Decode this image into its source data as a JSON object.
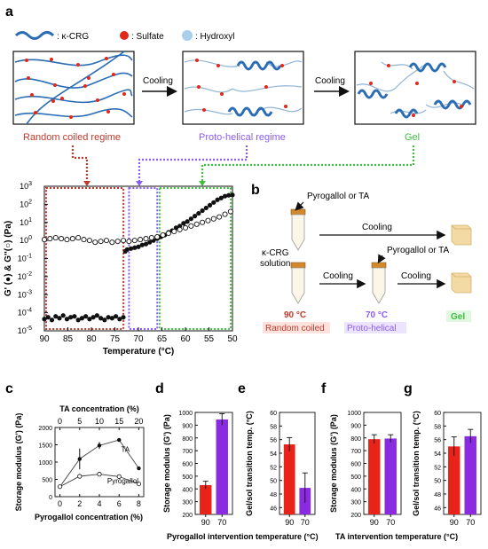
{
  "panel_letters": {
    "a": "a",
    "b": "b",
    "c": "c",
    "d": "d",
    "e": "e",
    "f": "f",
    "g": "g"
  },
  "legend_a": {
    "kcrg": ": κ-CRG",
    "sulfate": ": Sulfate",
    "hydroxyl": ": Hydroxyl"
  },
  "panel_a": {
    "cooling_1": "Cooling",
    "cooling_2": "Cooling",
    "regime_random": "Random coiled regime",
    "regime_proto": "Proto-helical regime",
    "regime_gel": "Gel"
  },
  "colors": {
    "red": "#c0392b",
    "purple": "#8a5cf6",
    "green": "#3fbf3f",
    "bar_red": "#e8241a",
    "bar_purple": "#8a2be2",
    "helix": "#2a6db5"
  },
  "panel_b": {
    "pyrogallol_or_ta_1": "Pyrogallol or TA",
    "pyrogallol_or_ta_2": "Pyrogallol or TA",
    "cooling_top": "Cooling",
    "cooling_mid": "Cooling",
    "cooling_right": "Cooling",
    "solution_line1": "κ-CRG",
    "solution_line2": "solution",
    "temp_90": "90 °C",
    "temp_70": "70 °C",
    "random_coiled": "Random coiled",
    "proto_helical": "Proto-helical",
    "gel": "Gel"
  },
  "chart_data": [
    {
      "id": "rheology",
      "type": "scatter",
      "xlabel": "Temperature (°C)",
      "ylabel": "G' (●) & G''(○) (Pa)",
      "xlim": [
        90,
        50
      ],
      "xticks": [
        90,
        85,
        80,
        75,
        70,
        65,
        60,
        55,
        50
      ],
      "ylim_log10": [
        -5,
        3
      ],
      "yticks": [
        "10^-5",
        "10^-4",
        "10^-3",
        "10^-2",
        "10^-1",
        "10^0",
        "10^1",
        "10^2",
        "10^3"
      ],
      "series": [
        {
          "marker": "filled",
          "x": [
            90,
            89.2,
            88.4,
            87.6,
            86.8,
            86,
            85.2,
            84.4,
            83.6,
            82.8,
            82,
            81.2,
            80.4,
            79.6,
            78.8,
            78,
            77.2,
            76.4,
            75.6,
            74.8,
            74,
            73.2,
            72.8,
            72.4,
            71.6,
            70.8,
            70,
            69.2,
            68.4,
            67.6,
            66.8,
            66,
            65.2,
            64.4,
            63.6,
            62.8,
            62,
            61.2,
            60.4,
            59.6,
            58.8,
            58,
            57.2,
            56.4,
            55.6,
            54.8,
            54,
            53.2,
            52.4,
            51.6,
            50.8,
            50
          ],
          "y": [
            -4.35,
            -4.25,
            -4.4,
            -4.2,
            -4.3,
            -4.15,
            -4.35,
            -4.25,
            -4.2,
            -4.4,
            -4.3,
            -4.2,
            -4.35,
            -4.25,
            -4.15,
            -4.3,
            -4.4,
            -4.25,
            -4.3,
            -4.2,
            -4.35,
            -4.25,
            -0.6,
            -0.5,
            -0.45,
            -0.4,
            -0.35,
            -0.25,
            -0.2,
            -0.1,
            0,
            0.1,
            0.2,
            0.3,
            0.45,
            0.55,
            0.7,
            0.8,
            0.95,
            1.05,
            1.2,
            1.35,
            1.5,
            1.65,
            1.8,
            1.95,
            2.1,
            2.25,
            2.35,
            2.45,
            2.5,
            2.52
          ]
        },
        {
          "marker": "open",
          "x": [
            90,
            88.8,
            87.6,
            86.4,
            85.2,
            84,
            82.8,
            81.6,
            80.4,
            79.2,
            78,
            76.8,
            75.6,
            74.4,
            73.2,
            72,
            70.8,
            69.6,
            68.4,
            67.2,
            66,
            64.8,
            63.6,
            62.4,
            61.2,
            60,
            58.8,
            57.6,
            56.4,
            55.2,
            54,
            52.8,
            51.6,
            50.4
          ],
          "y": [
            0.05,
            0.1,
            0.15,
            0.1,
            0.05,
            0.1,
            0.15,
            0.05,
            0.0,
            -0.1,
            -0.05,
            0.0,
            -0.1,
            -0.05,
            0.0,
            -0.05,
            0.0,
            0.05,
            0.1,
            0.15,
            0.2,
            0.3,
            0.4,
            0.5,
            0.6,
            0.7,
            0.8,
            0.9,
            1.0,
            1.1,
            1.2,
            1.3,
            1.45,
            1.6
          ]
        }
      ]
    },
    {
      "id": "c",
      "type": "line",
      "xlabel": "Pyrogallol concentration (%)",
      "x2label": "TA concentration (%)",
      "ylabel": "Storage modulus (G') (Pa)",
      "xlim": [
        -0.5,
        8.5
      ],
      "xticks": [
        0,
        2,
        4,
        6,
        8
      ],
      "x2ticks": [
        0,
        5,
        10,
        15,
        20
      ],
      "ylim": [
        0,
        2000
      ],
      "yticks": [
        0,
        500,
        1000,
        1500,
        2000
      ],
      "series": [
        {
          "name": "TA",
          "marker": "filled",
          "x": [
            0,
            2,
            4,
            6,
            8
          ],
          "y": [
            290,
            1090,
            1480,
            1640,
            820
          ],
          "err": [
            0,
            300,
            100,
            0,
            0
          ]
        },
        {
          "name": "Pyrogallol",
          "marker": "open",
          "x": [
            0,
            2,
            4,
            6,
            8
          ],
          "y": [
            290,
            590,
            650,
            580,
            370
          ],
          "err": [
            0,
            0,
            0,
            0,
            0
          ]
        }
      ]
    },
    {
      "id": "d",
      "type": "bar",
      "categories": [
        "90",
        "70"
      ],
      "values": [
        430,
        945
      ],
      "errors": [
        30,
        45
      ],
      "ylim": [
        200,
        1000
      ],
      "yticks": [
        200,
        300,
        400,
        500,
        600,
        700,
        800,
        900,
        1000
      ],
      "ylabel": "Storage modulus (G') (Pa)",
      "xlabel": "Pyrogallol intervention temperature (°C)"
    },
    {
      "id": "e",
      "type": "bar",
      "categories": [
        "90",
        "70"
      ],
      "values": [
        55.3,
        48.9
      ],
      "errors": [
        1.0,
        2.2
      ],
      "ylim": [
        45,
        60
      ],
      "yticks": [
        46,
        48,
        50,
        52,
        54,
        56,
        58,
        60
      ],
      "ylabel": "Gel/sol transition temp. (°C)"
    },
    {
      "id": "f",
      "type": "bar",
      "categories": [
        "90",
        "70"
      ],
      "values": [
        790,
        795
      ],
      "errors": [
        35,
        30
      ],
      "ylim": [
        200,
        1000
      ],
      "yticks": [
        200,
        300,
        400,
        500,
        600,
        700,
        800,
        900,
        1000
      ],
      "ylabel": "Storage modulus (G') (Pa)",
      "xlabel": "TA intervention temperature (°C)"
    },
    {
      "id": "g",
      "type": "bar",
      "categories": [
        "90",
        "70"
      ],
      "values": [
        55.0,
        56.5
      ],
      "errors": [
        1.4,
        1.0
      ],
      "ylim": [
        45,
        60
      ],
      "yticks": [
        46,
        48,
        50,
        52,
        54,
        56,
        58,
        60
      ],
      "ylabel": "Gel/sol transition temp. (°C)"
    }
  ]
}
